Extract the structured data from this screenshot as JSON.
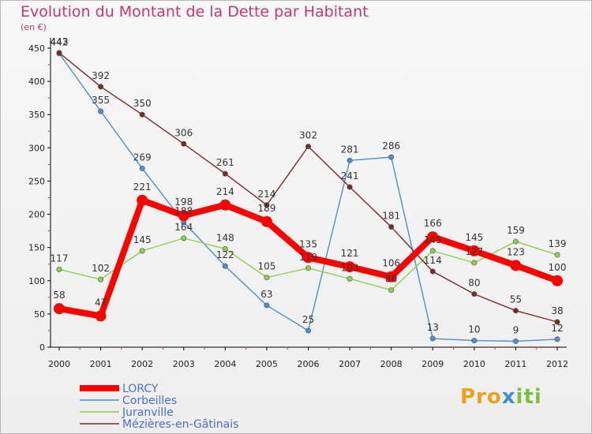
{
  "title": "Evolution du Montant de la Dette par Habitant",
  "subtitle": "(en €)",
  "logo": [
    "Pro",
    "x",
    "iti"
  ],
  "chart_data": {
    "type": "line",
    "title": "Evolution du Montant de la Dette par Habitant",
    "ylabel": "(en €)",
    "xlabel": "",
    "x": [
      "2000",
      "2001",
      "2002",
      "2003",
      "2004",
      "2005",
      "2006",
      "2007",
      "2008",
      "2009",
      "2010",
      "2011",
      "2012"
    ],
    "ylim": [
      0,
      450
    ],
    "yticks": [
      0,
      50,
      100,
      150,
      200,
      250,
      300,
      350,
      400,
      450
    ],
    "grid": false,
    "legend_position": "bottom-left",
    "series": [
      {
        "name": "LORCY",
        "color": "#ff0000",
        "values": [
          58,
          47,
          221,
          198,
          214,
          189,
          135,
          121,
          106,
          166,
          145,
          123,
          100
        ],
        "labels": [
          "58",
          "47",
          "221",
          "198",
          "214",
          "189",
          "135",
          "121",
          "106",
          "166",
          "145",
          "123",
          "100"
        ]
      },
      {
        "name": "Corbeilles",
        "color": "#4f8ec9",
        "values": [
          442,
          355,
          269,
          188,
          122,
          63,
          25,
          281,
          286,
          13,
          10,
          9,
          12
        ],
        "labels": [
          "442",
          "355",
          "269",
          "188",
          "122",
          "63",
          "25",
          "281",
          "286",
          "13",
          "10",
          "9",
          "12"
        ]
      },
      {
        "name": "Juranville",
        "color": "#8fcd50",
        "values": [
          117,
          102,
          145,
          164,
          148,
          105,
          119,
          103,
          86,
          145,
          127,
          159,
          139
        ],
        "labels": [
          "117",
          "102",
          "145",
          "164",
          "148",
          "105",
          "119",
          "103",
          "86",
          "145",
          "127",
          "159",
          "139"
        ]
      },
      {
        "name": "Mézières-en-Gâtinais",
        "color": "#7a2a2a",
        "values": [
          443,
          392,
          350,
          306,
          261,
          214,
          302,
          241,
          181,
          114,
          80,
          55,
          38
        ],
        "labels": [
          "443",
          "392",
          "350",
          "306",
          "261",
          "214",
          "302",
          "241",
          "181",
          "114",
          "80",
          "55",
          "38"
        ]
      }
    ]
  }
}
